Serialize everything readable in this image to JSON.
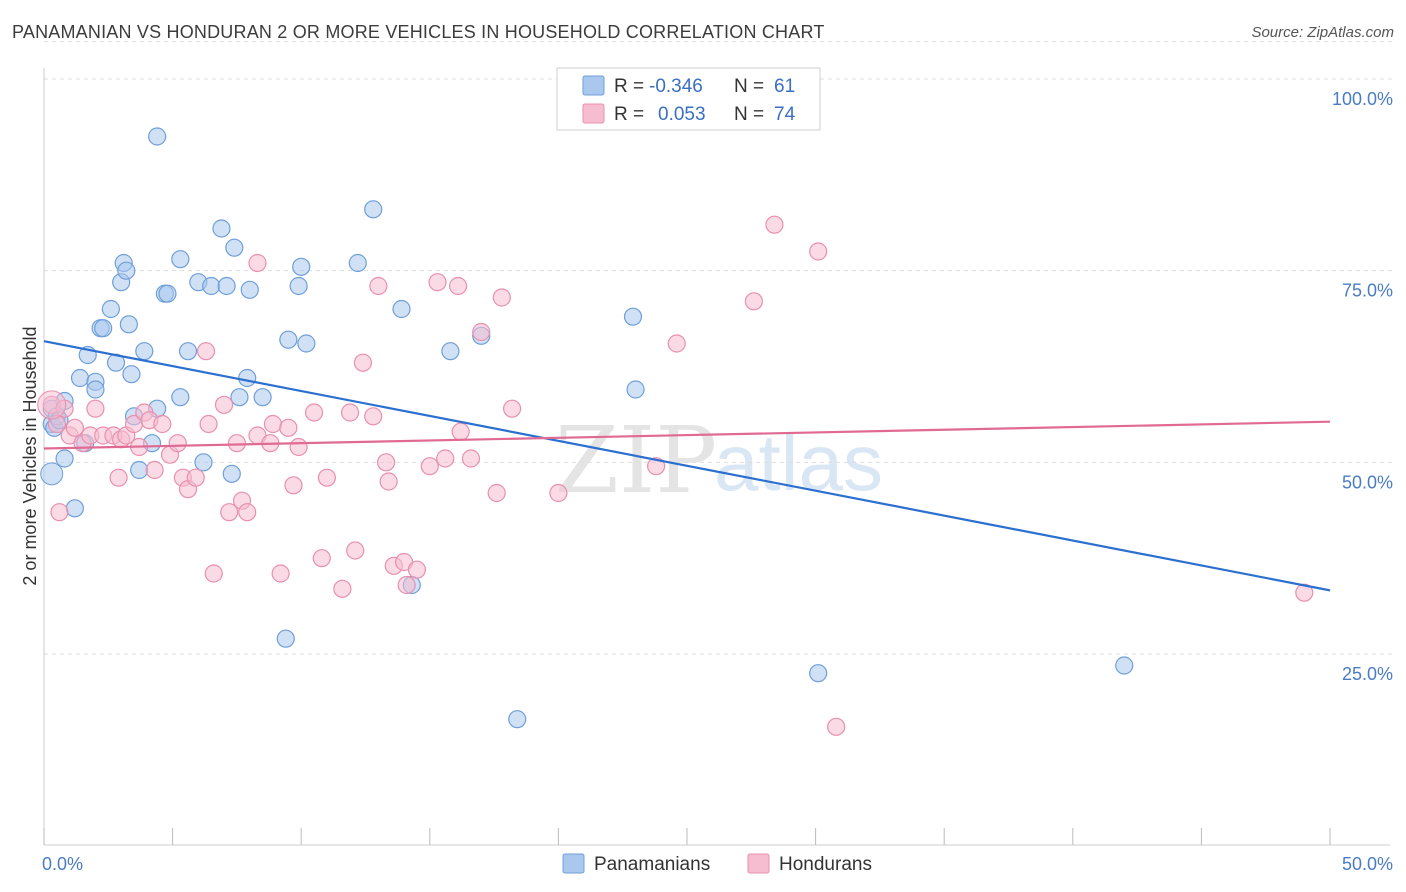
{
  "title": "PANAMANIAN VS HONDURAN 2 OR MORE VEHICLES IN HOUSEHOLD CORRELATION CHART",
  "source": "Source: ZipAtlas.com",
  "watermark": {
    "zip": "ZIP",
    "atlas": "atlas"
  },
  "colors": {
    "blue_fill": "#aac8ee",
    "blue_stroke": "#6f9fd8",
    "blue_line": "#2b6fd0",
    "pink_fill": "#f6bccf",
    "pink_stroke": "#e890ad",
    "pink_line": "#e06a93",
    "grid": "#dddddd",
    "tick_text": "#4a7cc4"
  },
  "legend": {
    "r_label": "R =",
    "n_label": "N =",
    "rows": [
      {
        "r": "-0.346",
        "n": "61",
        "color": "blue"
      },
      {
        "r": "0.053",
        "n": "74",
        "color": "pink"
      }
    ]
  },
  "chart_data": {
    "type": "scatter",
    "title": "PANAMANIAN VS HONDURAN 2 OR MORE VEHICLES IN HOUSEHOLD CORRELATION CHART",
    "xlabel": "",
    "ylabel": "2 or more Vehicles in Household",
    "xlim": [
      0,
      50
    ],
    "ylim": [
      0,
      105
    ],
    "x_tick_labels": [
      "0.0%",
      "50.0%"
    ],
    "y_ticks": [
      25,
      50,
      75,
      100
    ],
    "y_tick_labels": [
      "25.0%",
      "50.0%",
      "75.0%",
      "100.0%"
    ],
    "grid": "horizontal dashed",
    "legend_position": "top-center",
    "series": [
      {
        "name": "Panamanians",
        "color": "blue",
        "trend": {
          "x": [
            0,
            50
          ],
          "y": [
            65.8,
            33.3
          ]
        },
        "points": [
          [
            0.3,
            55
          ],
          [
            0.3,
            57
          ],
          [
            0.4,
            54.5
          ],
          [
            0.5,
            56
          ],
          [
            0.6,
            55.5
          ],
          [
            0.8,
            58
          ],
          [
            0.8,
            50.5
          ],
          [
            1.2,
            44
          ],
          [
            1.4,
            61
          ],
          [
            1.6,
            52.5
          ],
          [
            1.7,
            64
          ],
          [
            2.0,
            60.5
          ],
          [
            2.0,
            59.5
          ],
          [
            2.2,
            67.5
          ],
          [
            2.3,
            67.5
          ],
          [
            2.6,
            70
          ],
          [
            2.8,
            63
          ],
          [
            3.0,
            73.5
          ],
          [
            3.1,
            76
          ],
          [
            3.2,
            75
          ],
          [
            3.3,
            68
          ],
          [
            3.4,
            61.5
          ],
          [
            3.5,
            56
          ],
          [
            3.7,
            49
          ],
          [
            3.9,
            64.5
          ],
          [
            4.2,
            52.5
          ],
          [
            4.4,
            57
          ],
          [
            4.4,
            92.5
          ],
          [
            4.7,
            72
          ],
          [
            4.8,
            72
          ],
          [
            5.3,
            76.5
          ],
          [
            5.3,
            58.5
          ],
          [
            5.6,
            64.5
          ],
          [
            6.0,
            73.5
          ],
          [
            6.2,
            50
          ],
          [
            6.5,
            73
          ],
          [
            6.9,
            80.5
          ],
          [
            7.1,
            73
          ],
          [
            7.3,
            48.5
          ],
          [
            7.4,
            78
          ],
          [
            7.6,
            58.5
          ],
          [
            7.9,
            61
          ],
          [
            8.0,
            72.5
          ],
          [
            8.5,
            58.5
          ],
          [
            9.4,
            27
          ],
          [
            9.5,
            66
          ],
          [
            9.9,
            73
          ],
          [
            10.0,
            75.5
          ],
          [
            10.2,
            65.5
          ],
          [
            12.2,
            76
          ],
          [
            12.8,
            83
          ],
          [
            13.9,
            70
          ],
          [
            14.3,
            34
          ],
          [
            15.8,
            64.5
          ],
          [
            17.0,
            66.5
          ],
          [
            18.4,
            16.5
          ],
          [
            22.9,
            69
          ],
          [
            23.0,
            59.5
          ],
          [
            30.1,
            22.5
          ],
          [
            42.0,
            23.5
          ]
        ]
      },
      {
        "name": "Hondurans",
        "color": "pink",
        "trend": {
          "x": [
            0,
            50
          ],
          "y": [
            51.8,
            55.3
          ]
        },
        "points": [
          [
            0.3,
            57.5
          ],
          [
            0.5,
            55
          ],
          [
            0.6,
            43.5
          ],
          [
            0.8,
            57
          ],
          [
            1.0,
            53.5
          ],
          [
            1.2,
            54.5
          ],
          [
            1.5,
            52.5
          ],
          [
            1.8,
            53.5
          ],
          [
            2.0,
            57
          ],
          [
            2.3,
            53.5
          ],
          [
            2.7,
            53.5
          ],
          [
            2.9,
            48
          ],
          [
            3.0,
            53
          ],
          [
            3.2,
            53.5
          ],
          [
            3.5,
            55
          ],
          [
            3.7,
            52
          ],
          [
            3.9,
            56.5
          ],
          [
            4.1,
            55.5
          ],
          [
            4.3,
            49
          ],
          [
            4.6,
            55
          ],
          [
            4.9,
            51
          ],
          [
            5.2,
            52.5
          ],
          [
            5.4,
            48
          ],
          [
            5.6,
            46.5
          ],
          [
            5.9,
            48
          ],
          [
            6.3,
            64.5
          ],
          [
            6.4,
            55
          ],
          [
            6.6,
            35.5
          ],
          [
            7.0,
            57.5
          ],
          [
            7.2,
            43.5
          ],
          [
            7.5,
            52.5
          ],
          [
            7.7,
            45
          ],
          [
            7.9,
            43.5
          ],
          [
            8.3,
            76
          ],
          [
            8.3,
            53.5
          ],
          [
            8.8,
            52.5
          ],
          [
            8.9,
            55
          ],
          [
            9.2,
            35.5
          ],
          [
            9.5,
            54.5
          ],
          [
            9.7,
            47
          ],
          [
            9.9,
            52
          ],
          [
            10.5,
            56.5
          ],
          [
            10.8,
            37.5
          ],
          [
            11.0,
            48
          ],
          [
            11.6,
            33.5
          ],
          [
            11.9,
            56.5
          ],
          [
            12.1,
            38.5
          ],
          [
            12.4,
            63
          ],
          [
            12.8,
            56
          ],
          [
            13.0,
            73
          ],
          [
            13.3,
            50
          ],
          [
            13.4,
            47.5
          ],
          [
            13.6,
            36.5
          ],
          [
            14.0,
            37
          ],
          [
            14.1,
            34
          ],
          [
            14.5,
            36
          ],
          [
            15.0,
            49.5
          ],
          [
            15.3,
            73.5
          ],
          [
            15.6,
            50.5
          ],
          [
            16.1,
            73
          ],
          [
            16.2,
            54
          ],
          [
            16.6,
            50.5
          ],
          [
            17.0,
            67
          ],
          [
            17.6,
            46
          ],
          [
            17.8,
            71.5
          ],
          [
            18.2,
            57
          ],
          [
            20.0,
            46
          ],
          [
            23.8,
            49.5
          ],
          [
            24.6,
            65.5
          ],
          [
            27.6,
            71
          ],
          [
            28.4,
            81
          ],
          [
            30.1,
            77.5
          ],
          [
            30.8,
            15.5
          ],
          [
            49.0,
            33
          ]
        ]
      }
    ]
  },
  "bottom_legend": [
    {
      "label": "Panamanians",
      "color": "blue"
    },
    {
      "label": "Hondurans",
      "color": "pink"
    }
  ]
}
